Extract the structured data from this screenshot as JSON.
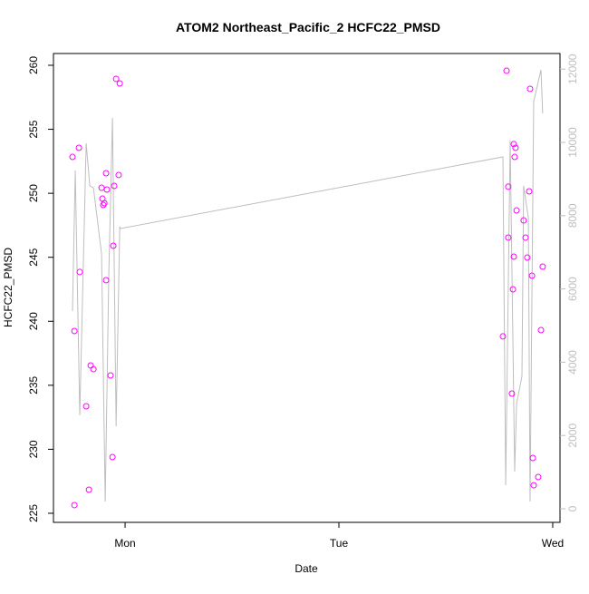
{
  "chart_data": {
    "type": "scatter",
    "title": "ATOM2 Northeast_Pacific_2 HCFC22_PMSD",
    "xlabel": "Date",
    "ylabel": "HCFC22_PMSD",
    "xlim": [
      0.665,
      3.034
    ],
    "xticks": [
      {
        "value": 1,
        "label": "Mon"
      },
      {
        "value": 2,
        "label": "Tue"
      },
      {
        "value": 3,
        "label": "Wed"
      }
    ],
    "ylim": [
      224.29,
      260.92
    ],
    "yticks": [
      225,
      230,
      235,
      240,
      245,
      250,
      255,
      260
    ],
    "y2lim": [
      -371,
      12426
    ],
    "y2ticks": [
      0,
      2000,
      4000,
      6000,
      8000,
      10000,
      12000
    ],
    "series": [
      {
        "type": "scatter",
        "color": "#ff00ff",
        "x": [
          0.754,
          0.763,
          0.763,
          0.784,
          0.788,
          0.818,
          0.831,
          0.839,
          0.852,
          0.89,
          0.894,
          0.898,
          0.903,
          0.911,
          0.915,
          0.911,
          0.932,
          0.941,
          0.945,
          0.949,
          0.958,
          0.97,
          0.975,
          2.767,
          2.784,
          2.792,
          2.792,
          2.809,
          2.814,
          2.818,
          2.818,
          2.826,
          2.822,
          2.831,
          2.864,
          2.873,
          2.881,
          2.89,
          2.894,
          2.903,
          2.907,
          2.911,
          2.932,
          2.945,
          2.953
        ],
        "values": [
          252.84,
          239.24,
          225.64,
          253.55,
          243.85,
          233.36,
          226.84,
          236.55,
          236.26,
          250.43,
          249.58,
          249.09,
          249.23,
          251.57,
          250.29,
          243.21,
          235.77,
          229.39,
          245.9,
          250.58,
          258.94,
          251.43,
          258.58,
          238.82,
          259.57,
          250.51,
          246.54,
          234.35,
          242.5,
          245.05,
          253.84,
          253.55,
          252.84,
          248.66,
          247.88,
          246.54,
          244.98,
          250.15,
          258.16,
          243.56,
          229.32,
          227.19,
          227.83,
          239.31,
          244.27
        ]
      },
      {
        "type": "line",
        "axis": "y2",
        "color": "#bebebe",
        "x": [
          0.754,
          0.767,
          0.788,
          0.818,
          0.835,
          0.852,
          0.89,
          0.907,
          0.924,
          0.941,
          0.958,
          0.975,
          0.979,
          2.767,
          2.78,
          2.801,
          2.822,
          2.831,
          2.856,
          2.864,
          2.886,
          2.894,
          2.911,
          2.945,
          2.953
        ],
        "values": [
          5396,
          9233,
          2550,
          9975,
          8812,
          8762,
          6955,
          198,
          6460,
          10668,
          2252,
          7698,
          7649,
          9604,
          644,
          10050,
          1015,
          2871,
          3614,
          8812,
          7946,
          198,
          11114,
          11980,
          10792
        ]
      }
    ]
  }
}
